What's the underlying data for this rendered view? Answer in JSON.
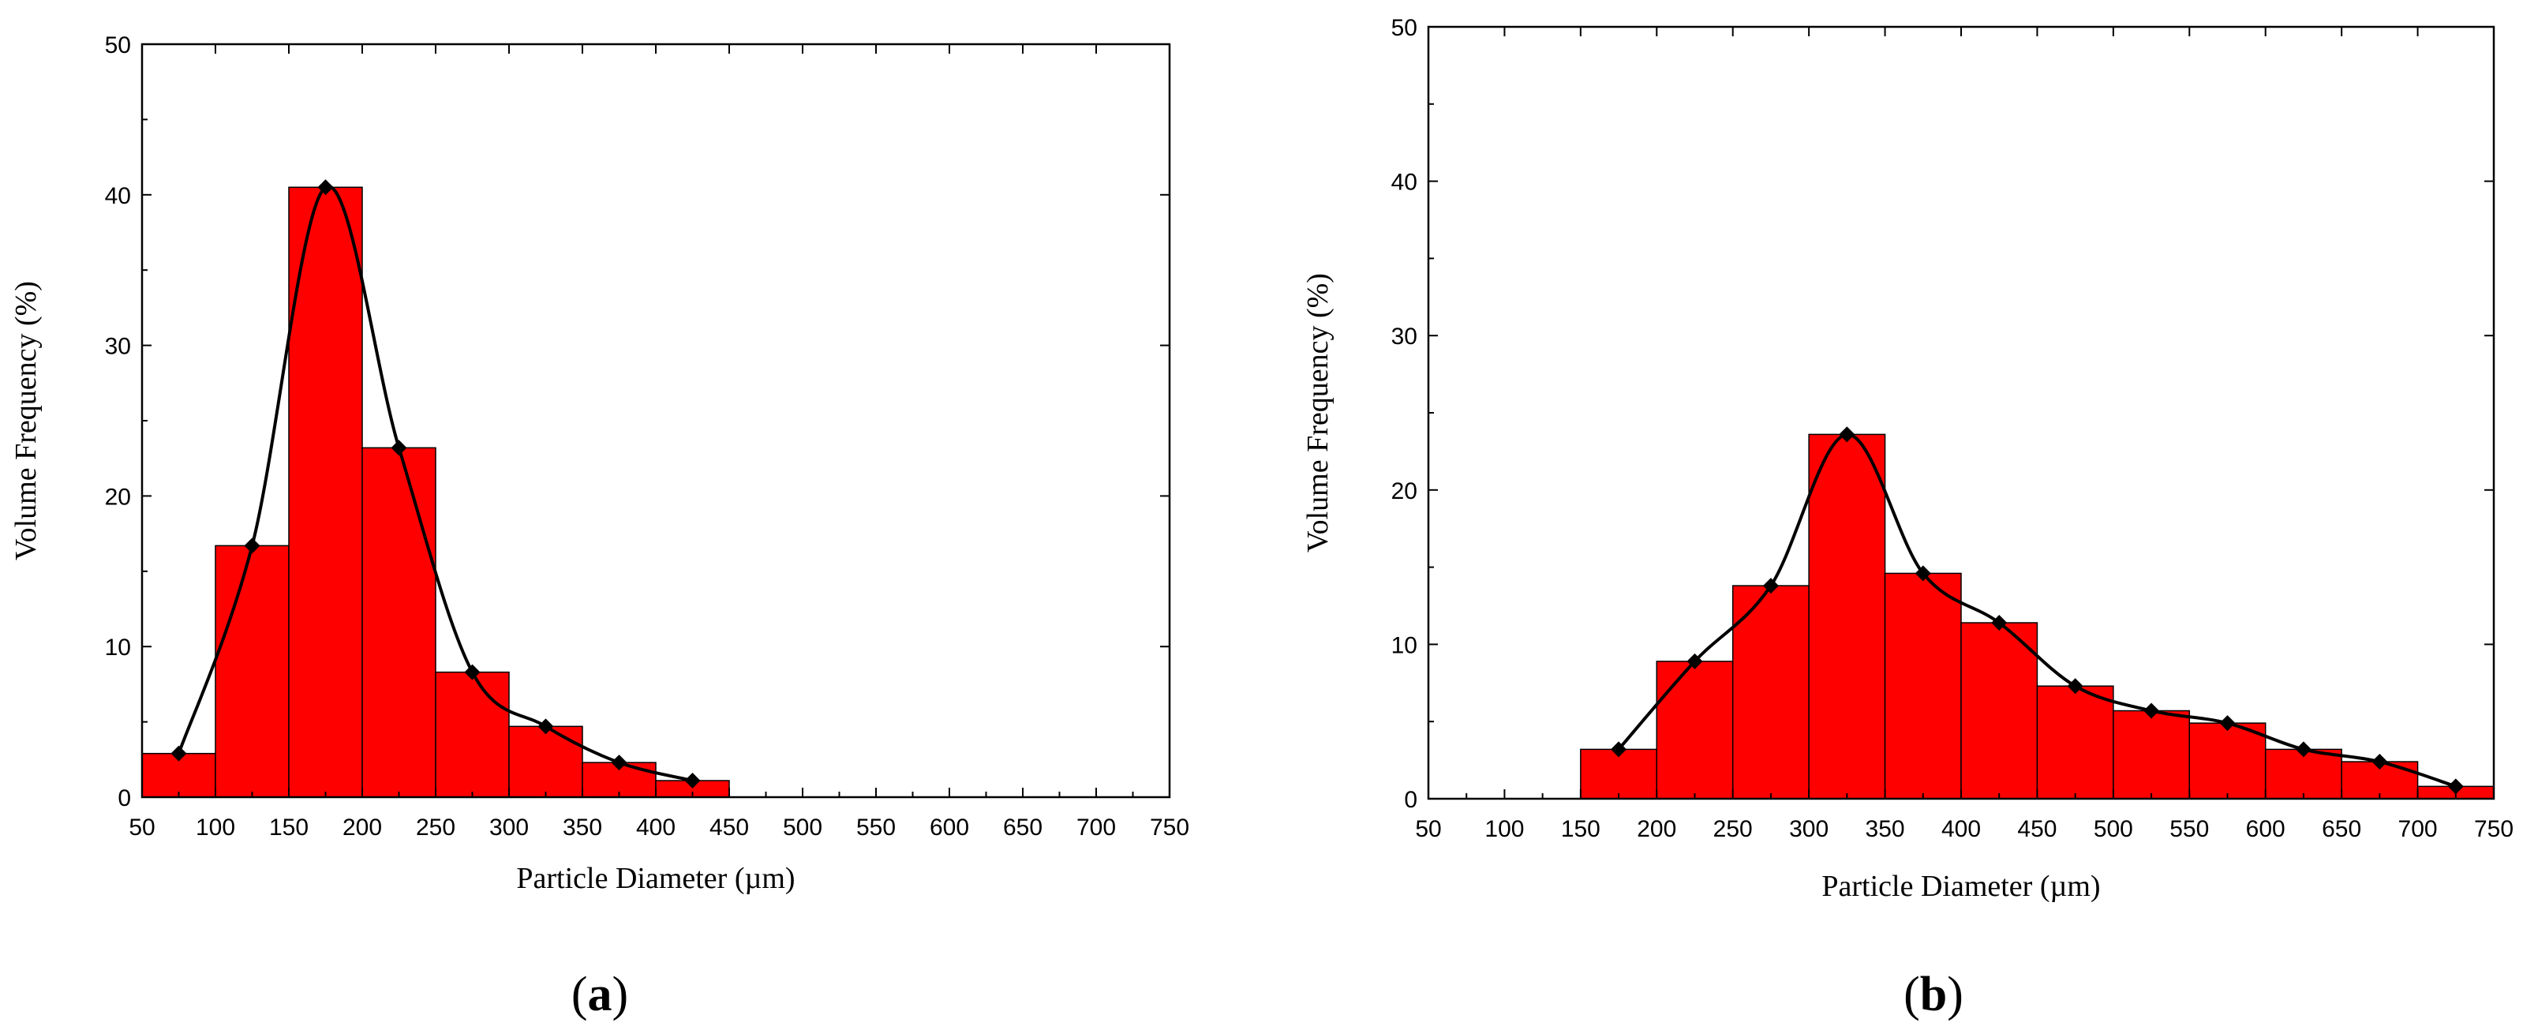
{
  "chart_data": [
    {
      "type": "bar",
      "panel_label": "a",
      "xlabel": "Particle Diameter (µm)",
      "ylabel": "Volume Frequency (%)",
      "xlim": [
        50,
        750
      ],
      "ylim": [
        0,
        50
      ],
      "x_ticks": [
        50,
        100,
        150,
        200,
        250,
        300,
        350,
        400,
        450,
        500,
        550,
        600,
        650,
        700,
        750
      ],
      "y_ticks": [
        0,
        10,
        20,
        30,
        40,
        50
      ],
      "bin_width": 50,
      "bins": [
        {
          "x": 75,
          "value": 2.9
        },
        {
          "x": 125,
          "value": 16.7
        },
        {
          "x": 175,
          "value": 40.5
        },
        {
          "x": 225,
          "value": 23.2
        },
        {
          "x": 275,
          "value": 8.3
        },
        {
          "x": 325,
          "value": 4.7
        },
        {
          "x": 375,
          "value": 2.3
        },
        {
          "x": 425,
          "value": 1.1
        }
      ],
      "bar_color": "#ff0000",
      "line_color": "#000000",
      "grid": false
    },
    {
      "type": "bar",
      "panel_label": "b",
      "xlabel": "Particle Diameter (µm)",
      "ylabel": "Volume Frequency (%)",
      "xlim": [
        50,
        750
      ],
      "ylim": [
        0,
        50
      ],
      "x_ticks": [
        50,
        100,
        150,
        200,
        250,
        300,
        350,
        400,
        450,
        500,
        550,
        600,
        650,
        700,
        750
      ],
      "y_ticks": [
        0,
        10,
        20,
        30,
        40,
        50
      ],
      "bin_width": 50,
      "bins": [
        {
          "x": 175,
          "value": 3.2
        },
        {
          "x": 225,
          "value": 8.9
        },
        {
          "x": 275,
          "value": 13.8
        },
        {
          "x": 325,
          "value": 23.6
        },
        {
          "x": 375,
          "value": 14.6
        },
        {
          "x": 425,
          "value": 11.4
        },
        {
          "x": 475,
          "value": 7.3
        },
        {
          "x": 525,
          "value": 5.7
        },
        {
          "x": 575,
          "value": 4.9
        },
        {
          "x": 625,
          "value": 3.2
        },
        {
          "x": 675,
          "value": 2.4
        },
        {
          "x": 725,
          "value": 0.8
        }
      ],
      "bar_color": "#ff0000",
      "line_color": "#000000",
      "grid": false
    }
  ]
}
